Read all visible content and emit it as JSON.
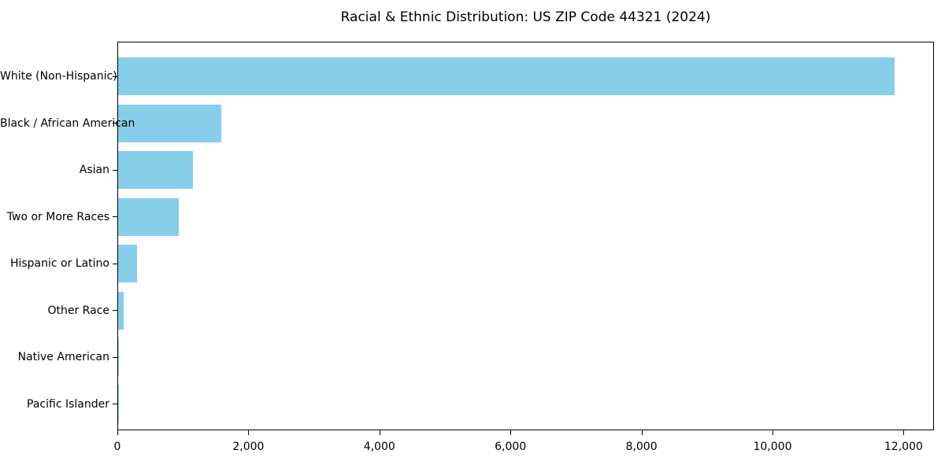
{
  "chart_data": {
    "type": "bar",
    "orientation": "horizontal",
    "title": "Racial & Ethnic Distribution: US ZIP Code 44321 (2024)",
    "categories": [
      "White (Non-Hispanic)",
      "Black / African American",
      "Asian",
      "Two or More Races",
      "Hispanic or Latino",
      "Other Race",
      "Native American",
      "Pacific Islander"
    ],
    "values": [
      11850,
      1580,
      1140,
      930,
      290,
      80,
      15,
      5
    ],
    "bar_color": "#87CEEB",
    "xlabel": "",
    "ylabel": "",
    "xlim": [
      0,
      12440
    ],
    "x_ticks": [
      0,
      2000,
      4000,
      6000,
      8000,
      10000,
      12000
    ],
    "x_tick_labels": [
      "0",
      "2,000",
      "4,000",
      "6,000",
      "8,000",
      "10,000",
      "12,000"
    ],
    "grid": false,
    "legend": null,
    "background_color": "#ffffff",
    "axis_color": "#000000"
  }
}
